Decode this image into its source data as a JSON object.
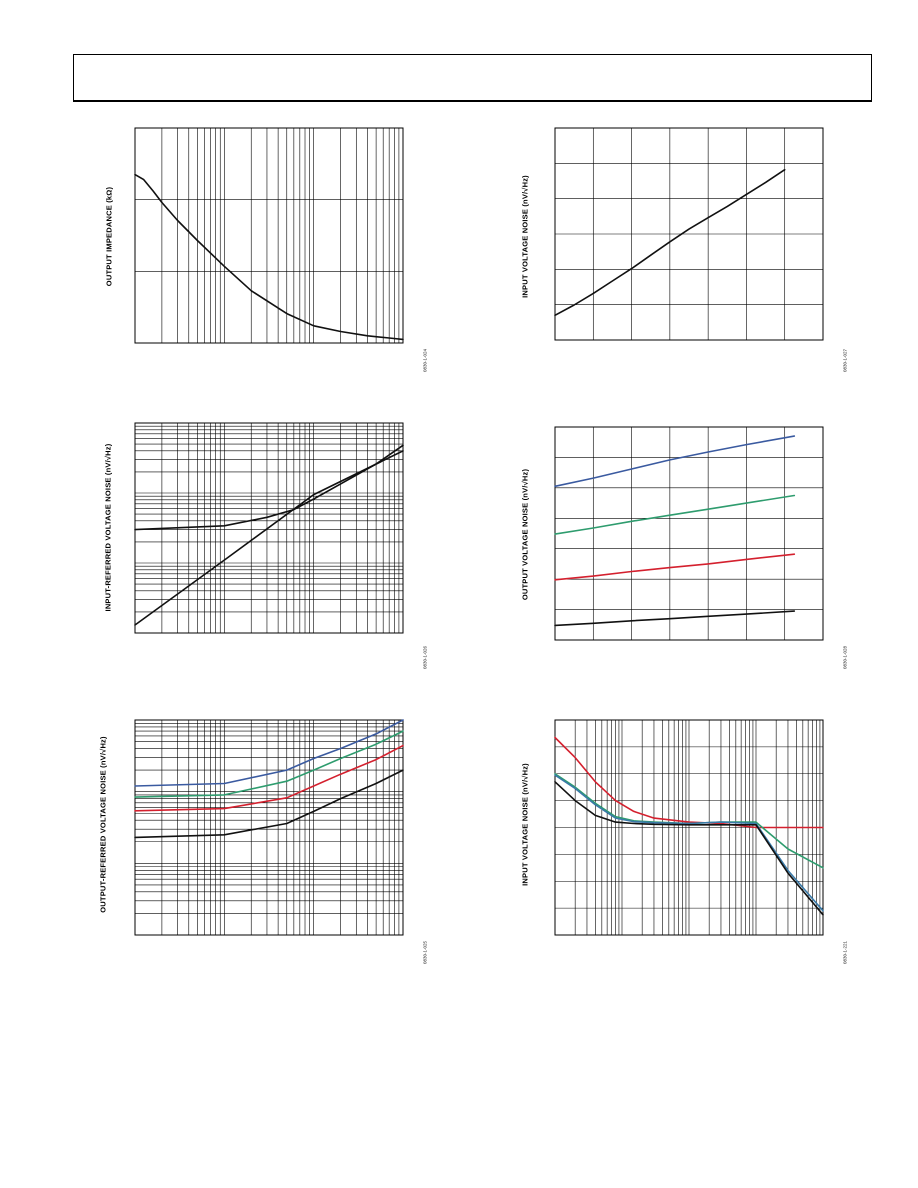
{
  "header": {
    "text": ""
  },
  "colors": {
    "blue": "#3a5aa0",
    "green": "#2e9c6e",
    "red": "#d4202e",
    "black": "#111111"
  },
  "chart_data": [
    {
      "id": "c1",
      "type": "line",
      "ylabel": "OUTPUT IMPEDANCE (kΩ)",
      "fig": "0830-1-024",
      "x_scale": "log",
      "xlim": [
        1,
        1000
      ],
      "ylim": [
        0,
        3
      ],
      "grid": true,
      "series": [
        {
          "name": "",
          "color": "#111111",
          "x": [
            1,
            1.25,
            1.6,
            2,
            3,
            5,
            10,
            20,
            50,
            100,
            200,
            400,
            700,
            1000
          ],
          "y": [
            2.35,
            2.28,
            2.12,
            1.96,
            1.71,
            1.43,
            1.07,
            0.73,
            0.41,
            0.24,
            0.16,
            0.1,
            0.07,
            0.05
          ]
        }
      ]
    },
    {
      "id": "c2",
      "type": "line",
      "ylabel": "INPUT VOLTAGE NOISE (nV/√Hz)",
      "fig": "0830-1-027",
      "x_scale": "linear",
      "xlim": [
        0,
        7
      ],
      "ylim": [
        0,
        6
      ],
      "grid": true,
      "series": [
        {
          "name": "",
          "color": "#111111",
          "x": [
            0,
            0.5,
            1,
            1.5,
            2,
            2.5,
            3,
            3.5,
            4,
            4.5,
            5,
            5.5,
            6
          ],
          "y": [
            0.7,
            0.99,
            1.32,
            1.67,
            2.02,
            2.4,
            2.78,
            3.14,
            3.46,
            3.78,
            4.12,
            4.46,
            4.82
          ]
        }
      ]
    },
    {
      "id": "c3",
      "type": "line",
      "ylabel": "INPUT-REFERRED VOLTAGE NOISE (nV/√Hz)",
      "fig": "0830-1-026",
      "x_scale": "log",
      "xlim": [
        1,
        1000
      ],
      "y_scale": "log",
      "ylim": [
        1,
        1000
      ],
      "grid": true,
      "series": [
        {
          "name": "",
          "color": "#111111",
          "x": [
            1,
            10,
            30,
            60,
            100,
            200,
            500,
            1000
          ],
          "y": [
            30,
            34,
            45,
            58,
            82,
            135,
            260,
            480
          ]
        },
        {
          "name": "",
          "color": "#111111",
          "x": [
            1,
            10,
            100,
            1000
          ],
          "y": [
            1.3,
            11,
            95,
            400
          ]
        }
      ]
    },
    {
      "id": "c4",
      "type": "line",
      "ylabel": "OUTPUT VOLTAGE NOISE (nV/√Hz)",
      "fig": "0830-1-028",
      "x_scale": "linear",
      "xlim": [
        0,
        7
      ],
      "ylim": [
        0,
        7
      ],
      "grid": true,
      "series": [
        {
          "name": "",
          "color": "#3a5aa0",
          "x": [
            0,
            1,
            2,
            3,
            4,
            5,
            6.25
          ],
          "y": [
            5.05,
            5.32,
            5.62,
            5.92,
            6.18,
            6.42,
            6.7
          ]
        },
        {
          "name": "",
          "color": "#2e9c6e",
          "x": [
            0,
            1,
            2,
            3,
            4,
            5,
            6.25
          ],
          "y": [
            3.48,
            3.68,
            3.9,
            4.1,
            4.3,
            4.5,
            4.75
          ]
        },
        {
          "name": "",
          "color": "#d4202e",
          "x": [
            0,
            1,
            2,
            3,
            4,
            5,
            6.25
          ],
          "y": [
            1.98,
            2.1,
            2.25,
            2.38,
            2.5,
            2.65,
            2.82
          ]
        },
        {
          "name": "",
          "color": "#111111",
          "x": [
            0,
            1,
            2,
            3,
            4,
            5,
            6.25
          ],
          "y": [
            0.48,
            0.55,
            0.63,
            0.7,
            0.78,
            0.85,
            0.95
          ]
        }
      ]
    },
    {
      "id": "c5",
      "type": "line",
      "ylabel": "OUTPUT-REFERRED VOLTAGE NOISE (nV/√Hz)",
      "fig": "0830-1-025",
      "x_scale": "log",
      "xlim": [
        1,
        1000
      ],
      "y_scale": "log",
      "ylim": [
        1,
        1000
      ],
      "grid": true,
      "series": [
        {
          "name": "",
          "color": "#3a5aa0",
          "x": [
            1,
            10,
            50,
            100,
            200,
            500,
            1000
          ],
          "y": [
            120,
            130,
            200,
            290,
            400,
            640,
            1000
          ]
        },
        {
          "name": "",
          "color": "#2e9c6e",
          "x": [
            1,
            10,
            50,
            100,
            200,
            500,
            1000
          ],
          "y": [
            84,
            90,
            140,
            200,
            290,
            460,
            700
          ]
        },
        {
          "name": "",
          "color": "#d4202e",
          "x": [
            1,
            10,
            50,
            100,
            200,
            500,
            1000
          ],
          "y": [
            54,
            58,
            82,
            120,
            175,
            280,
            440
          ]
        },
        {
          "name": "",
          "color": "#111111",
          "x": [
            1,
            10,
            50,
            100,
            200,
            500,
            1000
          ],
          "y": [
            23,
            25,
            36,
            53,
            80,
            130,
            200
          ]
        }
      ]
    },
    {
      "id": "c6",
      "type": "line",
      "ylabel": "INPUT VOLTAGE NOISE (nV/√Hz)",
      "fig": "0830-1-221",
      "x_scale": "log",
      "xlim": [
        1,
        10000
      ],
      "ylim": [
        0,
        8
      ],
      "grid": true,
      "series": [
        {
          "name": "",
          "color": "#d4202e",
          "x": [
            1,
            2,
            4,
            8,
            15,
            30,
            100,
            300,
            1000,
            3000,
            10000
          ],
          "y": [
            7.35,
            6.6,
            5.7,
            5.0,
            4.6,
            4.35,
            4.2,
            4.15,
            4.0,
            4.0,
            4.0
          ]
        },
        {
          "name": "",
          "color": "#2e9c6e",
          "x": [
            1,
            2,
            4,
            8,
            15,
            30,
            100,
            300,
            1000,
            3000,
            10000
          ],
          "y": [
            6.0,
            5.5,
            4.9,
            4.4,
            4.25,
            4.2,
            4.15,
            4.2,
            4.2,
            3.2,
            2.5
          ]
        },
        {
          "name": "",
          "color": "#3a7aa8",
          "x": [
            1,
            2,
            4,
            8,
            15,
            30,
            100,
            300,
            1000,
            3000,
            10000
          ],
          "y": [
            5.95,
            5.45,
            4.85,
            4.35,
            4.22,
            4.18,
            4.15,
            4.2,
            4.15,
            2.4,
            0.9
          ]
        },
        {
          "name": "",
          "color": "#111111",
          "x": [
            1,
            2,
            4,
            8,
            15,
            30,
            100,
            300,
            1000,
            3000,
            10000
          ],
          "y": [
            5.7,
            5.0,
            4.45,
            4.2,
            4.15,
            4.12,
            4.1,
            4.1,
            4.1,
            2.3,
            0.75
          ]
        }
      ]
    }
  ]
}
